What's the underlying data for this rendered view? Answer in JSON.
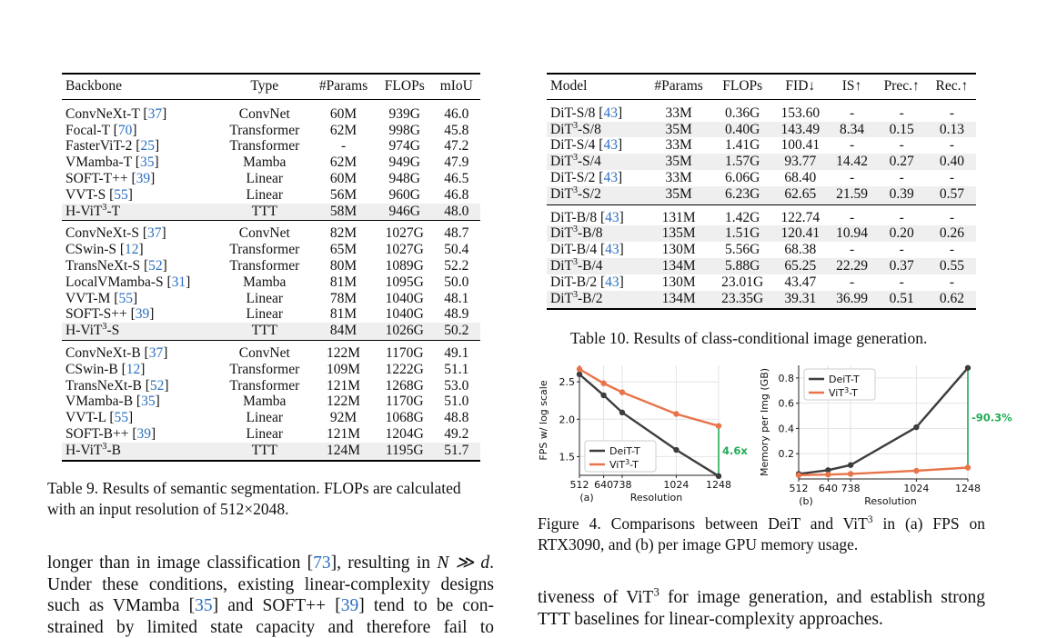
{
  "table9": {
    "headers": [
      "Backbone",
      "Type",
      "#Params",
      "FLOPs",
      "mIoU"
    ],
    "groups": [
      [
        {
          "name": "ConvNeXt-T",
          "cite": "37",
          "type": "ConvNet",
          "params": "60M",
          "flops": "939G",
          "miou": "46.0"
        },
        {
          "name": "Focal-T",
          "cite": "70",
          "type": "Transformer",
          "params": "62M",
          "flops": "998G",
          "miou": "45.8"
        },
        {
          "name": "FasterViT-2",
          "cite": "25",
          "type": "Transformer",
          "params": "-",
          "flops": "974G",
          "miou": "47.2"
        },
        {
          "name": "VMamba-T",
          "cite": "35",
          "type": "Mamba",
          "params": "62M",
          "flops": "949G",
          "miou": "47.9"
        },
        {
          "name": "SOFT-T++",
          "cite": "39",
          "type": "Linear",
          "params": "60M",
          "flops": "948G",
          "miou": "46.5"
        },
        {
          "name": "VVT-S",
          "cite": "55",
          "type": "Linear",
          "params": "56M",
          "flops": "960G",
          "miou": "46.8"
        },
        {
          "name": "H-ViT",
          "sup": "3",
          "suffix": "-T",
          "type": "TTT",
          "params": "58M",
          "flops": "946G",
          "miou": "48.0",
          "ours": true
        }
      ],
      [
        {
          "name": "ConvNeXt-S",
          "cite": "37",
          "type": "ConvNet",
          "params": "82M",
          "flops": "1027G",
          "miou": "48.7"
        },
        {
          "name": "CSwin-S",
          "cite": "12",
          "type": "Transformer",
          "params": "65M",
          "flops": "1027G",
          "miou": "50.4"
        },
        {
          "name": "TransNeXt-S",
          "cite": "52",
          "type": "Transformer",
          "params": "80M",
          "flops": "1089G",
          "miou": "52.2"
        },
        {
          "name": "LocalVMamba-S",
          "cite": "31",
          "type": "Mamba",
          "params": "81M",
          "flops": "1095G",
          "miou": "50.0"
        },
        {
          "name": "VVT-M",
          "cite": "55",
          "type": "Linear",
          "params": "78M",
          "flops": "1040G",
          "miou": "48.1"
        },
        {
          "name": "SOFT-S++",
          "cite": "39",
          "type": "Linear",
          "params": "81M",
          "flops": "1040G",
          "miou": "48.9"
        },
        {
          "name": "H-ViT",
          "sup": "3",
          "suffix": "-S",
          "type": "TTT",
          "params": "84M",
          "flops": "1026G",
          "miou": "50.2",
          "ours": true
        }
      ],
      [
        {
          "name": "ConvNeXt-B",
          "cite": "37",
          "type": "ConvNet",
          "params": "122M",
          "flops": "1170G",
          "miou": "49.1"
        },
        {
          "name": "CSwin-B",
          "cite": "12",
          "type": "Transformer",
          "params": "109M",
          "flops": "1222G",
          "miou": "51.1"
        },
        {
          "name": "TransNeXt-B",
          "cite": "52",
          "type": "Transformer",
          "params": "121M",
          "flops": "1268G",
          "miou": "53.0"
        },
        {
          "name": "VMamba-B",
          "cite": "35",
          "type": "Mamba",
          "params": "122M",
          "flops": "1170G",
          "miou": "51.0"
        },
        {
          "name": "VVT-L",
          "cite": "55",
          "type": "Linear",
          "params": "92M",
          "flops": "1068G",
          "miou": "48.8"
        },
        {
          "name": "SOFT-B++",
          "cite": "39",
          "type": "Linear",
          "params": "121M",
          "flops": "1204G",
          "miou": "49.2"
        },
        {
          "name": "H-ViT",
          "sup": "3",
          "suffix": "-B",
          "type": "TTT",
          "params": "124M",
          "flops": "1195G",
          "miou": "51.7",
          "ours": true
        }
      ]
    ],
    "caption_line1": "Table 9. Results of semantic segmentation. FLOPs are calculated",
    "caption_line2": "with an input resolution of 512×2048."
  },
  "table10": {
    "headers": [
      "Model",
      "#Params",
      "FLOPs",
      "FID↓",
      "IS↑",
      "Prec.↑",
      "Rec.↑"
    ],
    "groups": [
      [
        {
          "name": "DiT-S/8",
          "cite": "43",
          "params": "33M",
          "flops": "0.36G",
          "fid": "153.60",
          "is": "-",
          "prec": "-",
          "rec": "-"
        },
        {
          "name": "DiT",
          "sup": "3",
          "suffix": "-S/8",
          "params": "35M",
          "flops": "0.40G",
          "fid": "143.49",
          "is": "8.34",
          "prec": "0.15",
          "rec": "0.13",
          "ours": true
        },
        {
          "name": "DiT-S/4",
          "cite": "43",
          "params": "33M",
          "flops": "1.41G",
          "fid": "100.41",
          "is": "-",
          "prec": "-",
          "rec": "-"
        },
        {
          "name": "DiT",
          "sup": "3",
          "suffix": "-S/4",
          "params": "35M",
          "flops": "1.57G",
          "fid": "93.77",
          "is": "14.42",
          "prec": "0.27",
          "rec": "0.40",
          "ours": true
        },
        {
          "name": "DiT-S/2",
          "cite": "43",
          "params": "33M",
          "flops": "6.06G",
          "fid": "68.40",
          "is": "-",
          "prec": "-",
          "rec": "-"
        },
        {
          "name": "DiT",
          "sup": "3",
          "suffix": "-S/2",
          "params": "35M",
          "flops": "6.23G",
          "fid": "62.65",
          "is": "21.59",
          "prec": "0.39",
          "rec": "0.57",
          "ours": true
        }
      ],
      [
        {
          "name": "DiT-B/8",
          "cite": "43",
          "params": "131M",
          "flops": "1.42G",
          "fid": "122.74",
          "is": "-",
          "prec": "-",
          "rec": "-"
        },
        {
          "name": "DiT",
          "sup": "3",
          "suffix": "-B/8",
          "params": "135M",
          "flops": "1.51G",
          "fid": "120.41",
          "is": "10.94",
          "prec": "0.20",
          "rec": "0.26",
          "ours": true
        },
        {
          "name": "DiT-B/4",
          "cite": "43",
          "params": "130M",
          "flops": "5.56G",
          "fid": "68.38",
          "is": "-",
          "prec": "-",
          "rec": "-"
        },
        {
          "name": "DiT",
          "sup": "3",
          "suffix": "-B/4",
          "params": "134M",
          "flops": "5.88G",
          "fid": "65.25",
          "is": "22.29",
          "prec": "0.37",
          "rec": "0.55",
          "ours": true
        },
        {
          "name": "DiT-B/2",
          "cite": "43",
          "params": "130M",
          "flops": "23.01G",
          "fid": "43.47",
          "is": "-",
          "prec": "-",
          "rec": "-"
        },
        {
          "name": "DiT",
          "sup": "3",
          "suffix": "-B/2",
          "params": "134M",
          "flops": "23.35G",
          "fid": "39.31",
          "is": "36.99",
          "prec": "0.51",
          "rec": "0.62",
          "ours": true
        }
      ]
    ],
    "caption": "Table 10. Results of class-conditional image generation."
  },
  "figure4": {
    "caption_line1_a": "Figure 4.  Comparisons between DeiT and ViT",
    "caption_line1_sup": "3",
    "caption_line1_b": " in (a) FPS on",
    "caption_line2": "RTX3090, and (b) per image GPU memory usage.",
    "panel_a_label": "(a)",
    "panel_b_label": "(b)"
  },
  "chart_data": [
    {
      "type": "line",
      "title": "",
      "xlabel": "Resolution",
      "ylabel": "FPS w/ log scale",
      "x": [
        512,
        640,
        738,
        1024,
        1248
      ],
      "xticks": [
        "512",
        "640",
        "738",
        "1024",
        "1248"
      ],
      "yticks": [
        "1.5",
        "2.0",
        "2.5"
      ],
      "ylim": [
        1.25,
        2.72
      ],
      "grid": true,
      "legend": "bottom-left",
      "series": [
        {
          "name": "DeiT-T",
          "color": "#3d3d3d",
          "values": [
            2.6,
            2.32,
            2.09,
            1.59,
            1.24
          ]
        },
        {
          "name": "ViT³-T",
          "color": "#e8744a",
          "values": [
            2.67,
            2.48,
            2.36,
            2.07,
            1.91
          ]
        }
      ],
      "annotation": {
        "text": "4.6x",
        "color": "#22aa55"
      }
    },
    {
      "type": "line",
      "title": "",
      "xlabel": "Resolution",
      "ylabel": "Memory per Img (GB)",
      "x": [
        512,
        640,
        738,
        1024,
        1248
      ],
      "xticks": [
        "512",
        "640",
        "738",
        "1024",
        "1248"
      ],
      "yticks": [
        "0.2",
        "0.4",
        "0.6",
        "0.8"
      ],
      "ylim": [
        0.0,
        0.9
      ],
      "grid": true,
      "legend": "top-left",
      "series": [
        {
          "name": "DeiT-T",
          "color": "#3d3d3d",
          "values": [
            0.04,
            0.07,
            0.11,
            0.41,
            0.88
          ]
        },
        {
          "name": "ViT³-T",
          "color": "#e8744a",
          "values": [
            0.03,
            0.035,
            0.04,
            0.065,
            0.09
          ]
        }
      ],
      "annotation": {
        "text": "-90.3%",
        "color": "#22aa55"
      }
    }
  ],
  "text_left": {
    "line1_a": "longer than in image classification [",
    "line1_cite": "73",
    "line1_b": "], resulting in ",
    "line1_math": "N ≫ d",
    "line1_c": ".",
    "line2": "Under these conditions, existing linear-complexity designs",
    "line3_a": "such as VMamba [",
    "line3_cite1": "35",
    "line3_b": "] and SOFT++ [",
    "line3_cite2": "39",
    "line3_c": "] tend to be con-",
    "line4": "strained by limited state capacity and therefore fail to"
  },
  "text_right": {
    "line1_a": "tiveness of ViT",
    "line1_sup": "3",
    "line1_b": " for image generation, and establish strong",
    "line2": "TTT baselines for linear-complexity approaches."
  }
}
